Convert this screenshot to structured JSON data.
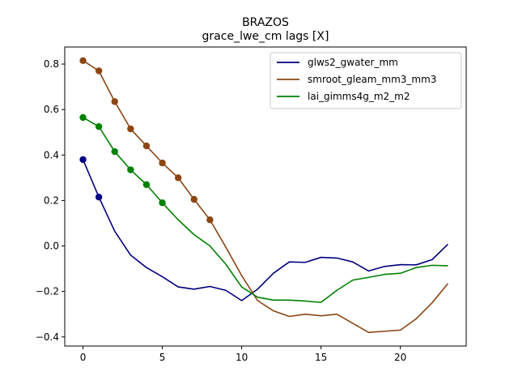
{
  "chart_data": {
    "type": "line",
    "title": "BRAZOS",
    "subtitle": "grace_lwe_cm lags [X]",
    "xlabel": "",
    "ylabel": "",
    "xlim": [
      -1.15,
      24.15
    ],
    "ylim": [
      -0.44,
      0.875
    ],
    "xticks": [
      0,
      5,
      10,
      15,
      20
    ],
    "xtick_labels": [
      "0",
      "5",
      "10",
      "15",
      "20"
    ],
    "yticks": [
      -0.4,
      -0.2,
      0.0,
      0.2,
      0.4,
      0.6,
      0.8
    ],
    "ytick_labels": [
      "−0.4",
      "−0.2",
      "0.0",
      "0.2",
      "0.4",
      "0.6",
      "0.8"
    ],
    "grid": false,
    "legend_position": "top-right",
    "x": [
      0,
      1,
      2,
      3,
      4,
      5,
      6,
      7,
      8,
      9,
      10,
      11,
      12,
      13,
      14,
      15,
      16,
      17,
      18,
      19,
      20,
      21,
      22,
      23
    ],
    "series": [
      {
        "name": "glws2_gwater_mm",
        "color": "#000080",
        "values": [
          0.38,
          0.215,
          0.065,
          -0.04,
          -0.095,
          -0.135,
          -0.18,
          -0.19,
          -0.178,
          -0.195,
          -0.24,
          -0.19,
          -0.12,
          -0.07,
          -0.072,
          -0.05,
          -0.053,
          -0.07,
          -0.11,
          -0.09,
          -0.082,
          -0.083,
          -0.06,
          0.008
        ],
        "marker_count": 2
      },
      {
        "name": "smroot_gleam_mm3_mm3",
        "color": "#8B4513",
        "values": [
          0.815,
          0.77,
          0.635,
          0.515,
          0.44,
          0.365,
          0.3,
          0.205,
          0.115,
          -0.005,
          -0.13,
          -0.24,
          -0.285,
          -0.31,
          -0.3,
          -0.307,
          -0.3,
          -0.34,
          -0.38,
          -0.375,
          -0.37,
          -0.32,
          -0.25,
          -0.165
        ],
        "marker_count": 9
      },
      {
        "name": "lai_gimms4g_m2_m2",
        "color": "#008000",
        "values": [
          0.565,
          0.525,
          0.415,
          0.335,
          0.27,
          0.19,
          0.115,
          0.05,
          0.0,
          -0.08,
          -0.18,
          -0.225,
          -0.238,
          -0.238,
          -0.242,
          -0.248,
          -0.195,
          -0.15,
          -0.138,
          -0.125,
          -0.12,
          -0.095,
          -0.085,
          -0.087
        ],
        "marker_count": 6
      }
    ]
  }
}
